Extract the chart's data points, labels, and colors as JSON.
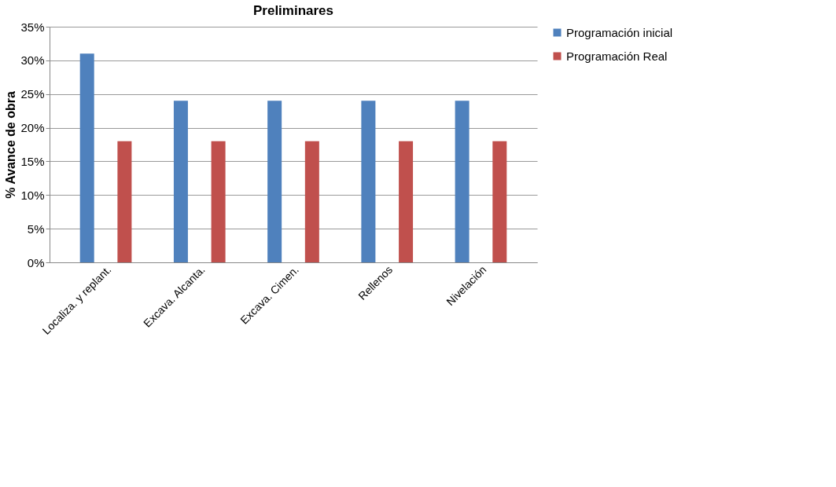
{
  "chart_data": {
    "type": "bar",
    "title": "Preliminares",
    "ylabel": "% Avance de obra",
    "categories": [
      "Localiza. y replant.",
      "Excava. Alcanta.",
      "Excava. Cimen.",
      "Rellenos",
      "Nivelación"
    ],
    "series": [
      {
        "name": "Programación inicial",
        "color": "#4f81bd",
        "values": [
          31,
          24,
          24,
          24,
          24
        ]
      },
      {
        "name": "Programación Real",
        "color": "#c0504d",
        "values": [
          18,
          18,
          18,
          18,
          18
        ]
      }
    ],
    "ylim": [
      0,
      35
    ],
    "yticks": [
      {
        "value": 0,
        "label": "0%"
      },
      {
        "value": 5,
        "label": "5%"
      },
      {
        "value": 10,
        "label": "10%"
      },
      {
        "value": 15,
        "label": "15%"
      },
      {
        "value": 20,
        "label": "20%"
      },
      {
        "value": 25,
        "label": "25%"
      },
      {
        "value": 30,
        "label": "30%"
      },
      {
        "value": 35,
        "label": "35%"
      }
    ],
    "grid": "y",
    "legend": "right"
  }
}
